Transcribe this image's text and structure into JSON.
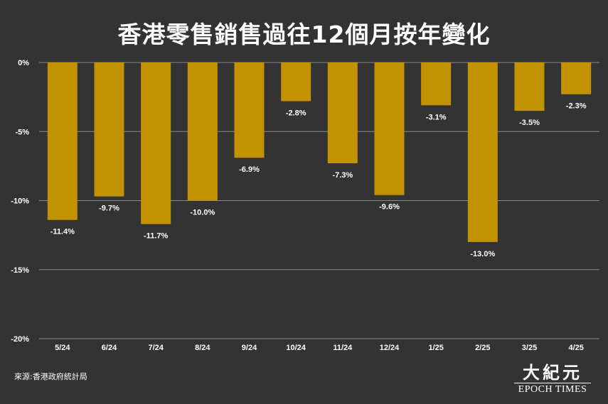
{
  "chart_data": {
    "type": "bar",
    "title": "香港零售銷售過往12個月按年變化",
    "categories": [
      "5/24",
      "6/24",
      "7/24",
      "8/24",
      "9/24",
      "10/24",
      "11/24",
      "12/24",
      "1/25",
      "2/25",
      "3/25",
      "4/25"
    ],
    "values": [
      -11.4,
      -9.7,
      -11.7,
      -10.0,
      -6.9,
      -2.8,
      -7.3,
      -9.6,
      -3.1,
      -13.0,
      -3.5,
      -2.3
    ],
    "data_labels": [
      "-11.4%",
      "-9.7%",
      "-11.7%",
      "-10.0%",
      "-6.9%",
      "-2.8%",
      "-7.3%",
      "-9.6%",
      "-3.1%",
      "-13.0%",
      "-3.5%",
      "-2.3%"
    ],
    "ylim": [
      -20,
      0
    ],
    "yticks": [
      0,
      -5,
      -10,
      -15,
      -20
    ],
    "ytick_labels": [
      "0%",
      "-5%",
      "-10%",
      "-15%",
      "-20%"
    ],
    "grid": true,
    "bar_color": "#C39200",
    "grid_color": "#8a8a8a"
  },
  "source": "來源:香港政府統計局",
  "logo": {
    "chinese": "大紀元",
    "english": "EPOCH TIMES"
  }
}
